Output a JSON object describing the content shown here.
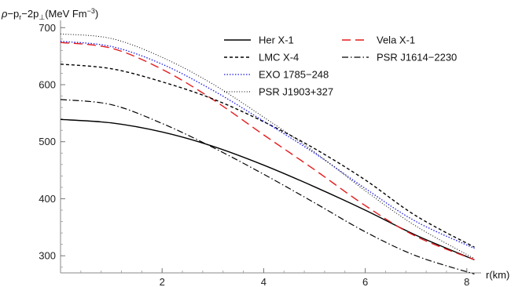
{
  "chart_data": {
    "type": "line",
    "ylabel": "ρ−p_r−2p_⊥(MeV Fm^−3)",
    "ylabel_parts": {
      "rho": "ρ",
      "minus1": "−p",
      "r": "r",
      "minus2": "−2p",
      "perp": "⊥",
      "unit": "(MeV Fm",
      "exp": "−3",
      "close": ")"
    },
    "xlabel": "r(km)",
    "xlim": [
      0,
      8.2
    ],
    "ylim": [
      270,
      710
    ],
    "x_ticks": [
      2,
      4,
      6,
      8
    ],
    "y_ticks": [
      300,
      400,
      500,
      600,
      700
    ],
    "x_minor_step": 0.4,
    "y_minor_step": 20,
    "grid": false,
    "legend_position": "top-right",
    "series": [
      {
        "name": "Her X-1",
        "color": "#000000",
        "dash": "",
        "width": 1.4,
        "x": [
          0,
          1,
          2,
          3,
          4,
          5,
          6,
          7,
          8.15
        ],
        "y": [
          539,
          533,
          517,
          492,
          459,
          421,
          380,
          336,
          293
        ]
      },
      {
        "name": "Vela X-1",
        "color": "#e41a1c",
        "dash": "11,6",
        "width": 1.4,
        "x": [
          0,
          1,
          2,
          3,
          4,
          5,
          6,
          7,
          8.15
        ],
        "y": [
          674,
          664,
          627,
          574,
          512,
          451,
          388,
          334,
          293
        ]
      },
      {
        "name": "LMC X-4",
        "color": "#000000",
        "dash": "4,3",
        "width": 1.4,
        "x": [
          0,
          1,
          2,
          3,
          4,
          5,
          6,
          7,
          8.15
        ],
        "y": [
          636,
          628,
          605,
          575,
          535,
          488,
          433,
          370,
          315
        ]
      },
      {
        "name": "PSR J1614−2230",
        "color": "#000000",
        "dash": "8,3,1.5,3",
        "width": 1.2,
        "x": [
          0,
          1,
          2,
          3,
          4,
          5,
          6,
          7,
          8.15
        ],
        "y": [
          574,
          565,
          532,
          490,
          443,
          393,
          342,
          300,
          268
        ]
      },
      {
        "name": "EXO 1785−248",
        "color": "#1a1ae6",
        "dash": "1.5,2",
        "width": 1.3,
        "x": [
          0,
          1,
          2,
          3,
          4,
          5,
          6,
          7,
          8.15
        ],
        "y": [
          676,
          667,
          636,
          590,
          536,
          480,
          418,
          360,
          313
        ]
      },
      {
        "name": "PSR J1903+327",
        "color": "#000000",
        "dash": "1,2.2",
        "width": 1.0,
        "x": [
          0,
          1,
          2,
          3,
          4,
          5,
          6,
          7,
          8.15
        ],
        "y": [
          689,
          681,
          648,
          601,
          543,
          482,
          414,
          352,
          295
        ]
      }
    ],
    "legend_layout": [
      [
        "Her X-1",
        "Vela X-1"
      ],
      [
        "LMC X-4",
        "PSR J1614−2230"
      ],
      [
        "EXO 1785−248",
        ""
      ],
      [
        "PSR J1903+327",
        ""
      ]
    ]
  }
}
